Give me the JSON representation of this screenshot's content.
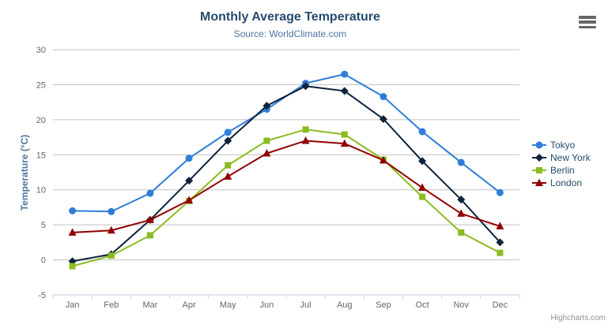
{
  "colors": {
    "title": "#274b6d",
    "subtitle": "#4d759e",
    "axis_title": "#4d759e",
    "tick_label": "#666666",
    "grid": "#c0c0c0",
    "axis_line": "#c0d0e0",
    "legend_text": "#274b6d",
    "credits": "#909090",
    "menu_icon": "#666666",
    "background": "#ffffff"
  },
  "export_menu": {
    "icon": "hamburger-menu-icon"
  },
  "credits": {
    "text": "Highcharts.com"
  },
  "chart_data": {
    "type": "line",
    "title": "Monthly Average Temperature",
    "subtitle": "Source: WorldClimate.com",
    "xlabel": "",
    "ylabel": "Temperature (°C)",
    "ylim": [
      -5,
      30
    ],
    "ytick_step": 5,
    "grid": true,
    "legend_position": "right",
    "categories": [
      "Jan",
      "Feb",
      "Mar",
      "Apr",
      "May",
      "Jun",
      "Jul",
      "Aug",
      "Sep",
      "Oct",
      "Nov",
      "Dec"
    ],
    "series": [
      {
        "name": "Tokyo",
        "color": "#2f7ed8",
        "marker": "circle",
        "values": [
          7.0,
          6.9,
          9.5,
          14.5,
          18.2,
          21.5,
          25.2,
          26.5,
          23.3,
          18.3,
          13.9,
          9.6
        ]
      },
      {
        "name": "New York",
        "color": "#0d233a",
        "marker": "diamond",
        "values": [
          -0.2,
          0.8,
          5.7,
          11.3,
          17.0,
          22.0,
          24.8,
          24.1,
          20.1,
          14.1,
          8.6,
          2.5
        ]
      },
      {
        "name": "Berlin",
        "color": "#8bbc21",
        "marker": "square",
        "values": [
          -0.9,
          0.6,
          3.5,
          8.4,
          13.5,
          17.0,
          18.6,
          17.9,
          14.3,
          9.0,
          3.9,
          1.0
        ]
      },
      {
        "name": "London",
        "color": "#910000",
        "marker": "triangle",
        "values": [
          3.9,
          4.2,
          5.7,
          8.5,
          11.9,
          15.2,
          17.0,
          16.6,
          14.2,
          10.3,
          6.6,
          4.8
        ]
      }
    ]
  }
}
